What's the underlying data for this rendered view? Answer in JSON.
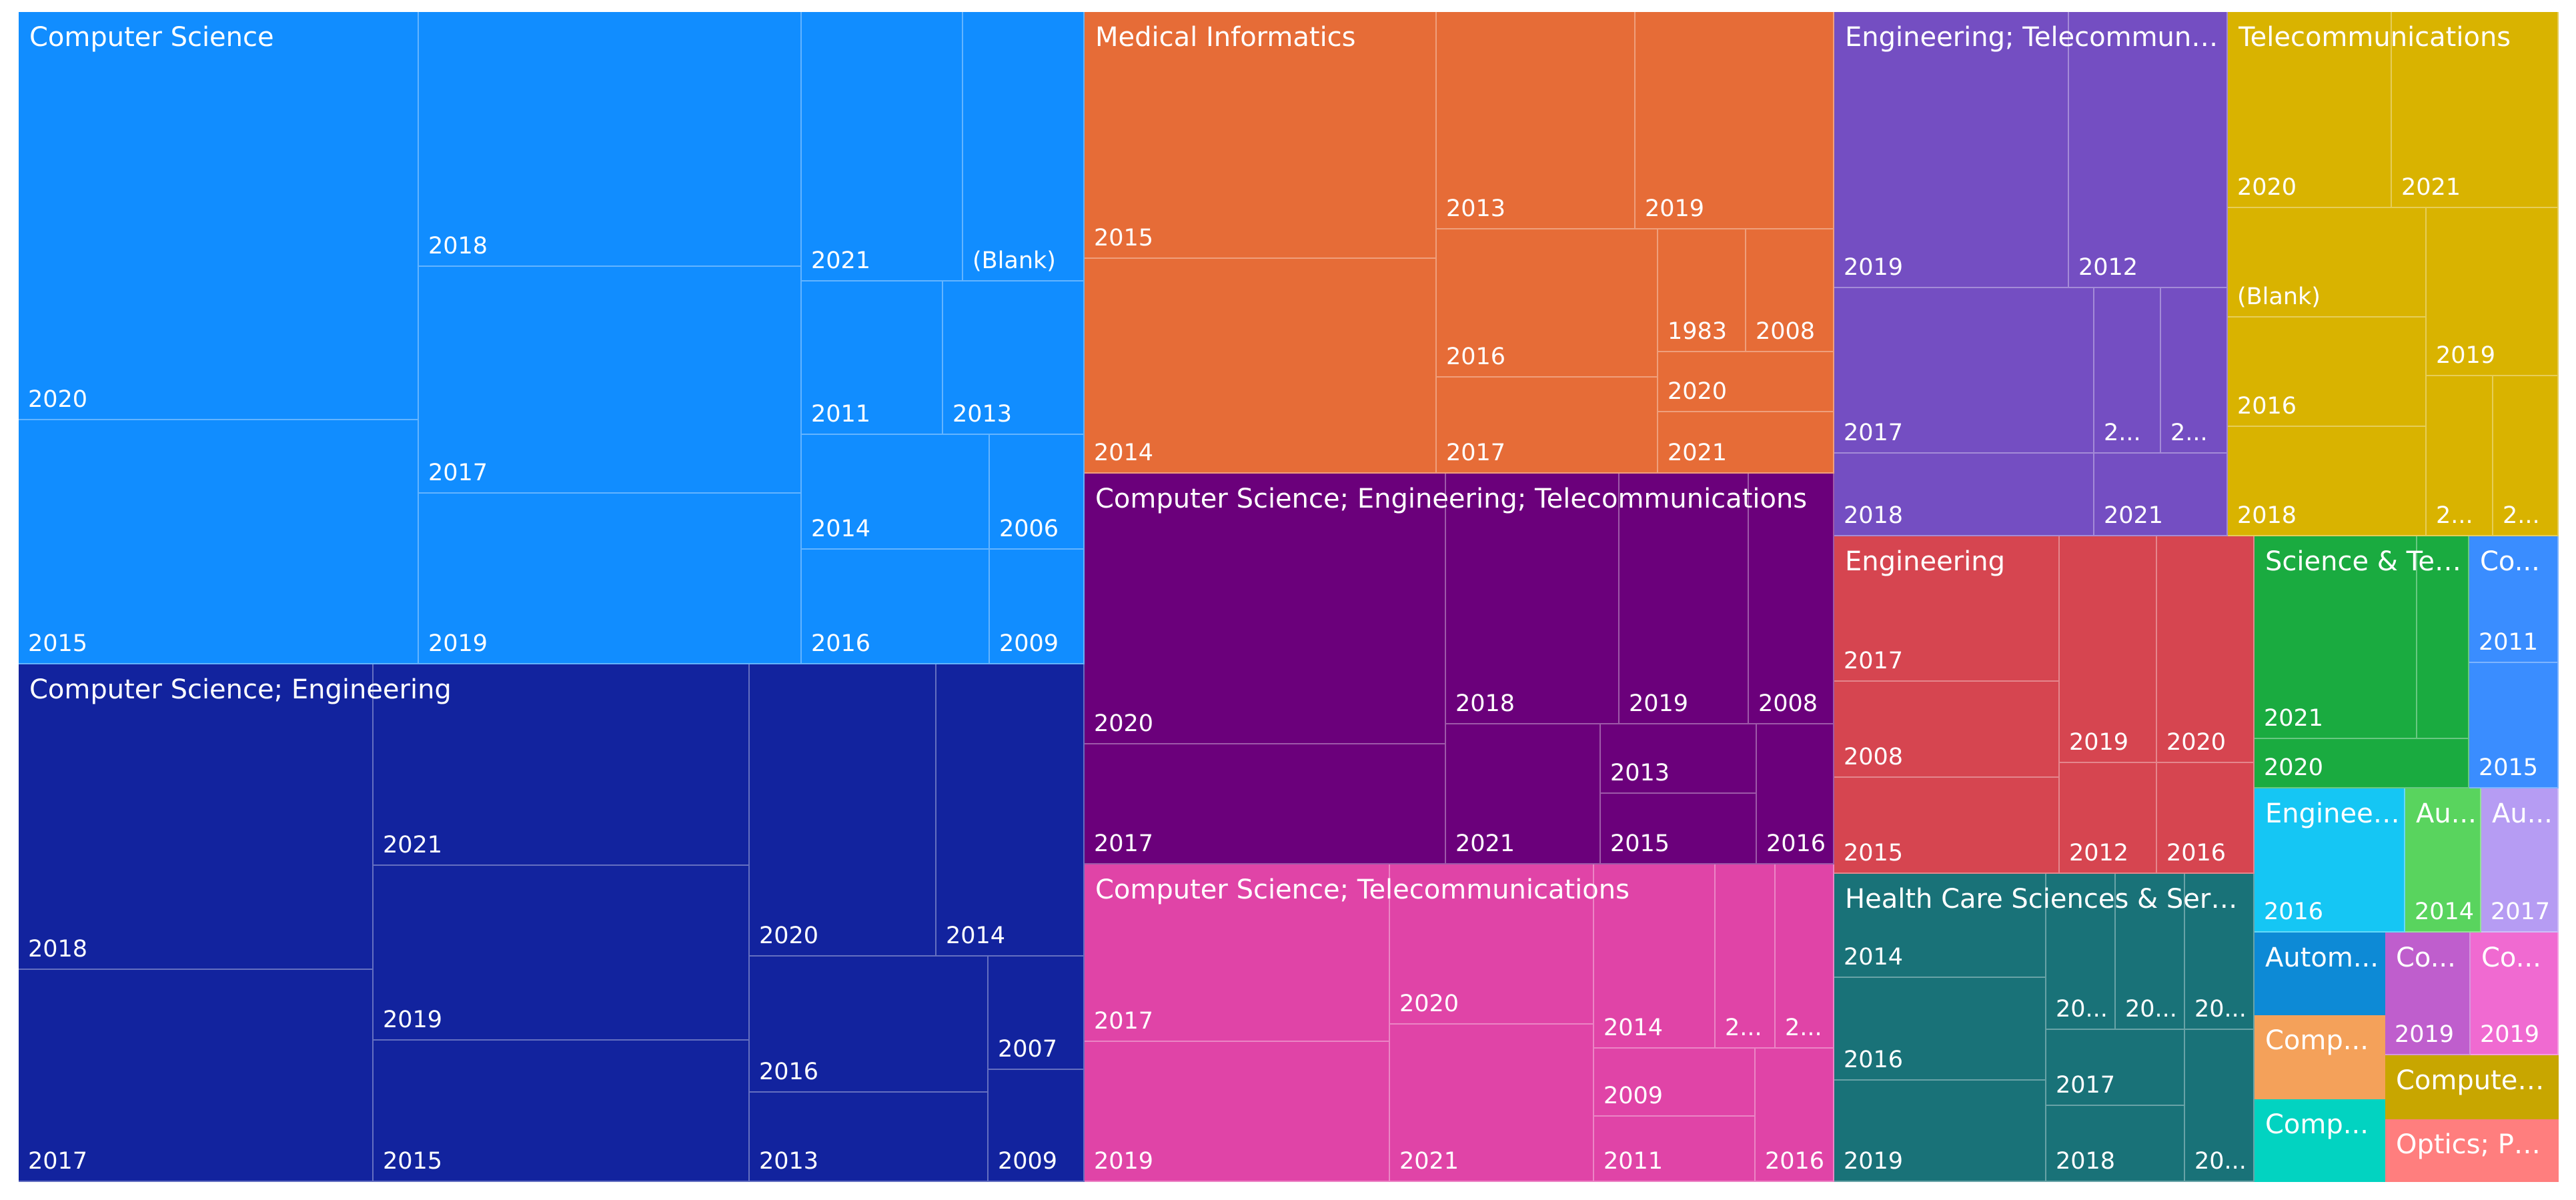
{
  "chart_data": {
    "type": "treemap",
    "groups": [
      {
        "name": "Computer Science",
        "color": "#118DFF",
        "items": [
          {
            "label": "2020",
            "value": 46
          },
          {
            "label": "2015",
            "value": 28
          },
          {
            "label": "2018",
            "value": 33
          },
          {
            "label": "2017",
            "value": 28
          },
          {
            "label": "2019",
            "value": 20
          },
          {
            "label": "2021",
            "value": 13
          },
          {
            "label": "(Blank)",
            "value": 10
          },
          {
            "label": "2011",
            "value": 9
          },
          {
            "label": "2013",
            "value": 8
          },
          {
            "label": "2014",
            "value": 7
          },
          {
            "label": "2006",
            "value": 5
          },
          {
            "label": "2016",
            "value": 6
          },
          {
            "label": "2009",
            "value": 4
          }
        ]
      },
      {
        "name": "Computer Science; Engineering",
        "color": "#12239E",
        "items": [
          {
            "label": "2018",
            "value": 21
          },
          {
            "label": "2017",
            "value": 16
          },
          {
            "label": "2021",
            "value": 14
          },
          {
            "label": "2019",
            "value": 12
          },
          {
            "label": "2015",
            "value": 10
          },
          {
            "label": "2020",
            "value": 11
          },
          {
            "label": "2014",
            "value": 10
          },
          {
            "label": "2016",
            "value": 5
          },
          {
            "label": "2013",
            "value": 4
          },
          {
            "label": "2007",
            "value": 3
          },
          {
            "label": "2009",
            "value": 2
          }
        ]
      },
      {
        "name": "Medical Informatics",
        "color": "#E66C37",
        "items": [
          {
            "label": "2015",
            "value": 15
          },
          {
            "label": "2014",
            "value": 12
          },
          {
            "label": "2013",
            "value": 7
          },
          {
            "label": "2019",
            "value": 7
          },
          {
            "label": "2016",
            "value": 5
          },
          {
            "label": "2017",
            "value": 3
          },
          {
            "label": "1983",
            "value": 2
          },
          {
            "label": "2008",
            "value": 2
          },
          {
            "label": "2020",
            "value": 2
          },
          {
            "label": "2021",
            "value": 2
          }
        ]
      },
      {
        "name": "Computer Science; Engineering; Telecommunications",
        "color": "#6B007B",
        "items": [
          {
            "label": "2020",
            "value": 18
          },
          {
            "label": "2017",
            "value": 8
          },
          {
            "label": "2018",
            "value": 8
          },
          {
            "label": "2019",
            "value": 6
          },
          {
            "label": "2008",
            "value": 4
          },
          {
            "label": "2021",
            "value": 4
          },
          {
            "label": "2013",
            "value": 2
          },
          {
            "label": "2015",
            "value": 2
          },
          {
            "label": "2016",
            "value": 2
          }
        ]
      },
      {
        "name": "Computer Science; Telecommunications",
        "color": "#E044A7",
        "items": [
          {
            "label": "2017",
            "value": 9
          },
          {
            "label": "2019",
            "value": 8
          },
          {
            "label": "2020",
            "value": 6
          },
          {
            "label": "2021",
            "value": 6
          },
          {
            "label": "2014",
            "value": 4
          },
          {
            "label": "2...",
            "value": 2
          },
          {
            "label": "2...",
            "value": 2
          },
          {
            "label": "2009",
            "value": 2
          },
          {
            "label": "2011",
            "value": 2
          },
          {
            "label": "2016",
            "value": 2
          }
        ]
      },
      {
        "name": "Engineering; Telecommunica...",
        "color": "#744EC2",
        "items": [
          {
            "label": "2019",
            "value": 8
          },
          {
            "label": "2012",
            "value": 6
          },
          {
            "label": "2017",
            "value": 5
          },
          {
            "label": "2...",
            "value": 2
          },
          {
            "label": "2...",
            "value": 2
          },
          {
            "label": "2018",
            "value": 3
          },
          {
            "label": "2021",
            "value": 2
          }
        ]
      },
      {
        "name": "Telecommunications",
        "color": "#D9B300",
        "items": [
          {
            "label": "2020",
            "value": 6
          },
          {
            "label": "2021",
            "value": 6
          },
          {
            "label": "(Blank)",
            "value": 3
          },
          {
            "label": "2016",
            "value": 3
          },
          {
            "label": "2018",
            "value": 3
          },
          {
            "label": "2019",
            "value": 4
          },
          {
            "label": "2...",
            "value": 2
          },
          {
            "label": "2...",
            "value": 2
          }
        ]
      },
      {
        "name": "Engineering",
        "color": "#D64550",
        "items": [
          {
            "label": "2017",
            "value": 5
          },
          {
            "label": "2008",
            "value": 4
          },
          {
            "label": "2015",
            "value": 4
          },
          {
            "label": "2019",
            "value": 4
          },
          {
            "label": "2020",
            "value": 4
          },
          {
            "label": "2012",
            "value": 2
          },
          {
            "label": "2016",
            "value": 2
          }
        ]
      },
      {
        "name": "Health Care Sciences & Service...",
        "color": "#197278",
        "items": [
          {
            "label": "2014",
            "value": 4
          },
          {
            "label": "2016",
            "value": 4
          },
          {
            "label": "2019",
            "value": 4
          },
          {
            "label": "20...",
            "value": 2
          },
          {
            "label": "20...",
            "value": 2
          },
          {
            "label": "20...",
            "value": 2
          },
          {
            "label": "2017",
            "value": 2
          },
          {
            "label": "2018",
            "value": 2
          },
          {
            "label": "20...",
            "value": 2
          }
        ]
      },
      {
        "name": "Science & Tec...",
        "color": "#1AAB40",
        "items": [
          {
            "label": "2021",
            "value": 3
          },
          {
            "label": "",
            "value": 1
          },
          {
            "label": "2020",
            "value": 1
          }
        ]
      },
      {
        "name": "Co...",
        "color": "#3A8DFF",
        "items": [
          {
            "label": "2011",
            "value": 2
          },
          {
            "label": "2015",
            "value": 2
          }
        ]
      },
      {
        "name": "Engineer...",
        "color": "#15C6F4",
        "items": [
          {
            "label": "2016",
            "value": 2
          }
        ]
      },
      {
        "name": "Au...",
        "color": "#59D45E",
        "items": [
          {
            "label": "2014",
            "value": 1
          }
        ]
      },
      {
        "name": "Au...",
        "color": "#B69CF3",
        "items": [
          {
            "label": "2017",
            "value": 1
          }
        ]
      },
      {
        "name": "Autom...",
        "color": "#0D8AD6",
        "items": []
      },
      {
        "name": "Co...",
        "color": "#BF5ECD",
        "items": [
          {
            "label": "2019",
            "value": 1
          }
        ]
      },
      {
        "name": "Co...",
        "color": "#F06AD1",
        "items": [
          {
            "label": "2019",
            "value": 1
          }
        ]
      },
      {
        "name": "Comp...",
        "color": "#F4A15A",
        "items": []
      },
      {
        "name": "Computer ...",
        "color": "#C8A600",
        "items": []
      },
      {
        "name": "Comp...",
        "color": "#02D3C1",
        "items": []
      },
      {
        "name": "Optics; Ph...",
        "color": "#FF7E7E",
        "items": []
      }
    ]
  }
}
